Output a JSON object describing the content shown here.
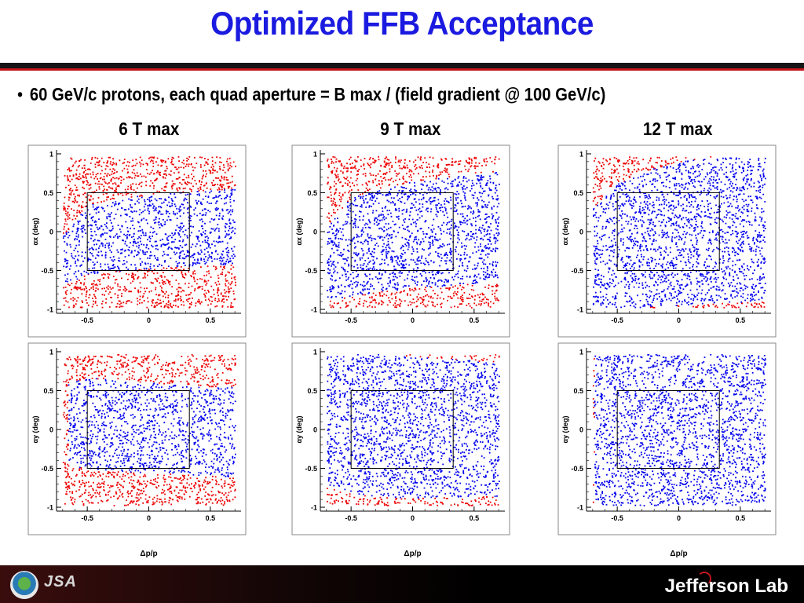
{
  "slide": {
    "title": "Optimized FFB Acceptance",
    "bullet": "60 GeV/c protons, each quad aperture = B max / (field gradient @ 100 GeV/c)",
    "column_headings": [
      "6 T max",
      "9 T max",
      "12 T max"
    ],
    "footer": {
      "left_logo_text": "JSA",
      "right_logo_text": "Jefferson Lab"
    },
    "colors": {
      "title": "#1a1ae0",
      "accepted": "#0000ee",
      "rejected": "#ee0000",
      "rule": "#151515",
      "rule_accent": "#c2161b"
    }
  },
  "chart_data": [
    {
      "type": "scatter",
      "field": "6 T max",
      "row": "x",
      "ylabel": "αx (deg)",
      "xlabel": "",
      "xlim": [
        -0.75,
        0.75
      ],
      "ylim": [
        -1.05,
        1.05
      ],
      "xticks": [
        "-0.5",
        "0",
        "0.5"
      ],
      "yticks": [
        "1",
        "0.5",
        "0",
        "-0.5",
        "-1"
      ],
      "series": [
        {
          "color": "#0000ee",
          "boundary": {
            "x": [
              -0.7,
              -0.5,
              -0.25,
              0,
              0.25,
              0.5,
              0.7
            ],
            "upper": [
              -0.05,
              0.35,
              0.43,
              0.48,
              0.51,
              0.54,
              0.56
            ],
            "lower": [
              -0.68,
              -0.54,
              -0.5,
              -0.47,
              -0.44,
              -0.42,
              -0.41
            ]
          }
        },
        {
          "color": "#ee0000"
        }
      ],
      "box": {
        "x": [
          -0.5,
          0.33
        ],
        "y": [
          -0.5,
          0.5
        ]
      }
    },
    {
      "type": "scatter",
      "field": "9 T max",
      "row": "x",
      "ylabel": "αx (deg)",
      "xlabel": "",
      "xlim": [
        -0.75,
        0.75
      ],
      "ylim": [
        -1.05,
        1.05
      ],
      "xticks": [
        "-0.5",
        "0",
        "0.5"
      ],
      "yticks": [
        "1",
        "0.5",
        "0",
        "-0.5",
        "-1"
      ],
      "series": [
        {
          "color": "#0000ee",
          "boundary": {
            "x": [
              -0.7,
              -0.5,
              -0.25,
              0,
              0.25,
              0.5,
              0.7
            ],
            "upper": [
              0.05,
              0.45,
              0.57,
              0.65,
              0.7,
              0.74,
              0.78
            ],
            "lower": [
              -0.88,
              -0.82,
              -0.76,
              -0.72,
              -0.69,
              -0.66,
              -0.64
            ]
          }
        },
        {
          "color": "#ee0000"
        }
      ],
      "box": {
        "x": [
          -0.5,
          0.33
        ],
        "y": [
          -0.5,
          0.5
        ]
      }
    },
    {
      "type": "scatter",
      "field": "12 T max",
      "row": "x",
      "ylabel": "αx (deg)",
      "xlabel": "",
      "xlim": [
        -0.75,
        0.75
      ],
      "ylim": [
        -1.05,
        1.05
      ],
      "xticks": [
        "-0.5",
        "0",
        "0.5"
      ],
      "yticks": [
        "1",
        "0.5",
        "0",
        "-0.5",
        "-1"
      ],
      "series": [
        {
          "color": "#0000ee",
          "boundary": {
            "x": [
              -0.7,
              -0.5,
              -0.25,
              0,
              0.25,
              0.5,
              0.7
            ],
            "upper": [
              0.3,
              0.62,
              0.8,
              0.9,
              0.96,
              1.0,
              1.0
            ],
            "lower": [
              -1.0,
              -0.98,
              -0.96,
              -0.94,
              -0.92,
              -0.9,
              -0.89
            ]
          }
        },
        {
          "color": "#ee0000"
        }
      ],
      "box": {
        "x": [
          -0.5,
          0.33
        ],
        "y": [
          -0.5,
          0.5
        ]
      }
    },
    {
      "type": "scatter",
      "field": "6 T max",
      "row": "y",
      "ylabel": "αy (deg)",
      "xlabel": "Δp/p",
      "xlim": [
        -0.75,
        0.75
      ],
      "ylim": [
        -1.05,
        1.05
      ],
      "xticks": [
        "-0.5",
        "0",
        "0.5"
      ],
      "yticks": [
        "1",
        "0.5",
        "0",
        "-0.5",
        "-1"
      ],
      "series": [
        {
          "color": "#0000ee",
          "boundary": {
            "xmin": -0.66,
            "x": [
              -0.66,
              -0.5,
              -0.25,
              0,
              0.25,
              0.5,
              0.7
            ],
            "upper": [
              0.6,
              0.67,
              0.64,
              0.61,
              0.58,
              0.56,
              0.55
            ],
            "lower": [
              -0.45,
              -0.5,
              -0.53,
              -0.55,
              -0.57,
              -0.59,
              -0.6
            ]
          }
        },
        {
          "color": "#ee0000"
        }
      ],
      "box": {
        "x": [
          -0.5,
          0.33
        ],
        "y": [
          -0.5,
          0.5
        ]
      }
    },
    {
      "type": "scatter",
      "field": "9 T max",
      "row": "y",
      "ylabel": "αy (deg)",
      "xlabel": "Δp/p",
      "xlim": [
        -0.75,
        0.75
      ],
      "ylim": [
        -1.05,
        1.05
      ],
      "xticks": [
        "-0.5",
        "0",
        "0.5"
      ],
      "yticks": [
        "1",
        "0.5",
        "0",
        "-0.5",
        "-1"
      ],
      "series": [
        {
          "color": "#0000ee",
          "boundary": {
            "xmin": -0.7,
            "x": [
              -0.7,
              -0.5,
              -0.25,
              0,
              0.25,
              0.5,
              0.7
            ],
            "upper": [
              0.95,
              0.98,
              0.97,
              0.95,
              0.92,
              0.89,
              0.87
            ],
            "lower": [
              -0.7,
              -0.83,
              -0.86,
              -0.87,
              -0.87,
              -0.86,
              -0.85
            ]
          }
        },
        {
          "color": "#ee0000"
        }
      ],
      "box": {
        "x": [
          -0.5,
          0.33
        ],
        "y": [
          -0.5,
          0.5
        ]
      }
    },
    {
      "type": "scatter",
      "field": "12 T max",
      "row": "y",
      "ylabel": "αy (deg)",
      "xlabel": "Δp/p",
      "xlim": [
        -0.75,
        0.75
      ],
      "ylim": [
        -1.05,
        1.05
      ],
      "xticks": [
        "-0.5",
        "0",
        "0.5"
      ],
      "yticks": [
        "1",
        "0.5",
        "0",
        "-0.5",
        "-1"
      ],
      "series": [
        {
          "color": "#0000ee",
          "boundary": {
            "xmin": -0.69,
            "x": [
              -0.69,
              -0.5,
              -0.25,
              0,
              0.25,
              0.5,
              0.7
            ],
            "upper": [
              1.0,
              1.0,
              1.0,
              1.0,
              1.0,
              1.0,
              1.0
            ],
            "lower": [
              -1.0,
              -1.0,
              -1.0,
              -1.0,
              -1.0,
              -1.0,
              -1.0
            ]
          }
        },
        {
          "color": "#ee0000"
        }
      ],
      "box": {
        "x": [
          -0.5,
          0.33
        ],
        "y": [
          -0.5,
          0.5
        ]
      }
    }
  ]
}
